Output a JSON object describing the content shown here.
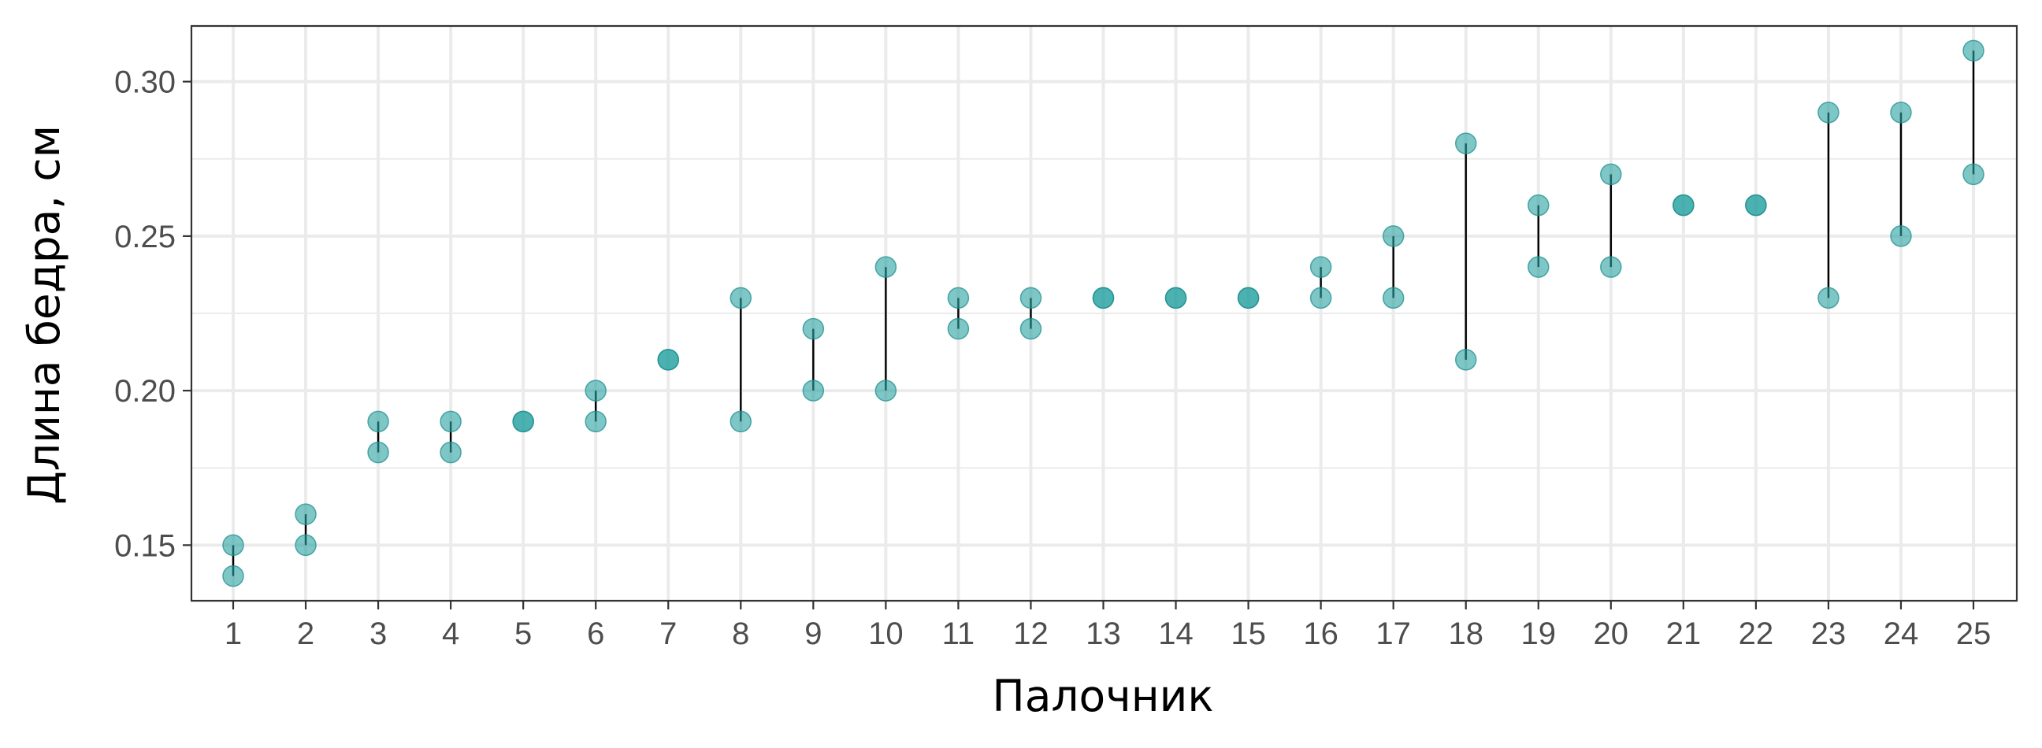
{
  "colors": {
    "point_fill": "#2AA1A1",
    "point_stroke": "#1F8F8F",
    "segment": "#000000",
    "grid": "#EBEBEB",
    "panel_border": "#333333",
    "background": "#FFFFFF"
  },
  "chart_data": {
    "type": "scatter",
    "title": "",
    "xlabel": "Палочник",
    "ylabel": "Длина бедра, см",
    "categories": [
      "1",
      "2",
      "3",
      "4",
      "5",
      "6",
      "7",
      "8",
      "9",
      "10",
      "11",
      "12",
      "13",
      "14",
      "15",
      "16",
      "17",
      "18",
      "19",
      "20",
      "21",
      "22",
      "23",
      "24",
      "25"
    ],
    "yticks": [
      "0.15",
      "0.20",
      "0.25",
      "0.30"
    ],
    "ylim": [
      0.132,
      0.318
    ],
    "grid": true,
    "legend": "none",
    "point_alpha": 0.6,
    "series": [
      {
        "values": [
          0.15,
          0.16,
          0.19,
          0.19,
          0.19,
          0.2,
          0.21,
          0.23,
          0.22,
          0.24,
          0.23,
          0.23,
          0.23,
          0.23,
          0.23,
          0.24,
          0.25,
          0.28,
          0.26,
          0.27,
          0.26,
          0.26,
          0.29,
          0.29,
          0.31
        ]
      },
      {
        "values": [
          0.14,
          0.15,
          0.18,
          0.18,
          0.19,
          0.19,
          0.21,
          0.19,
          0.2,
          0.2,
          0.22,
          0.22,
          0.23,
          0.23,
          0.23,
          0.23,
          0.23,
          0.21,
          0.24,
          0.24,
          0.26,
          0.26,
          0.23,
          0.25,
          0.27
        ]
      }
    ]
  }
}
